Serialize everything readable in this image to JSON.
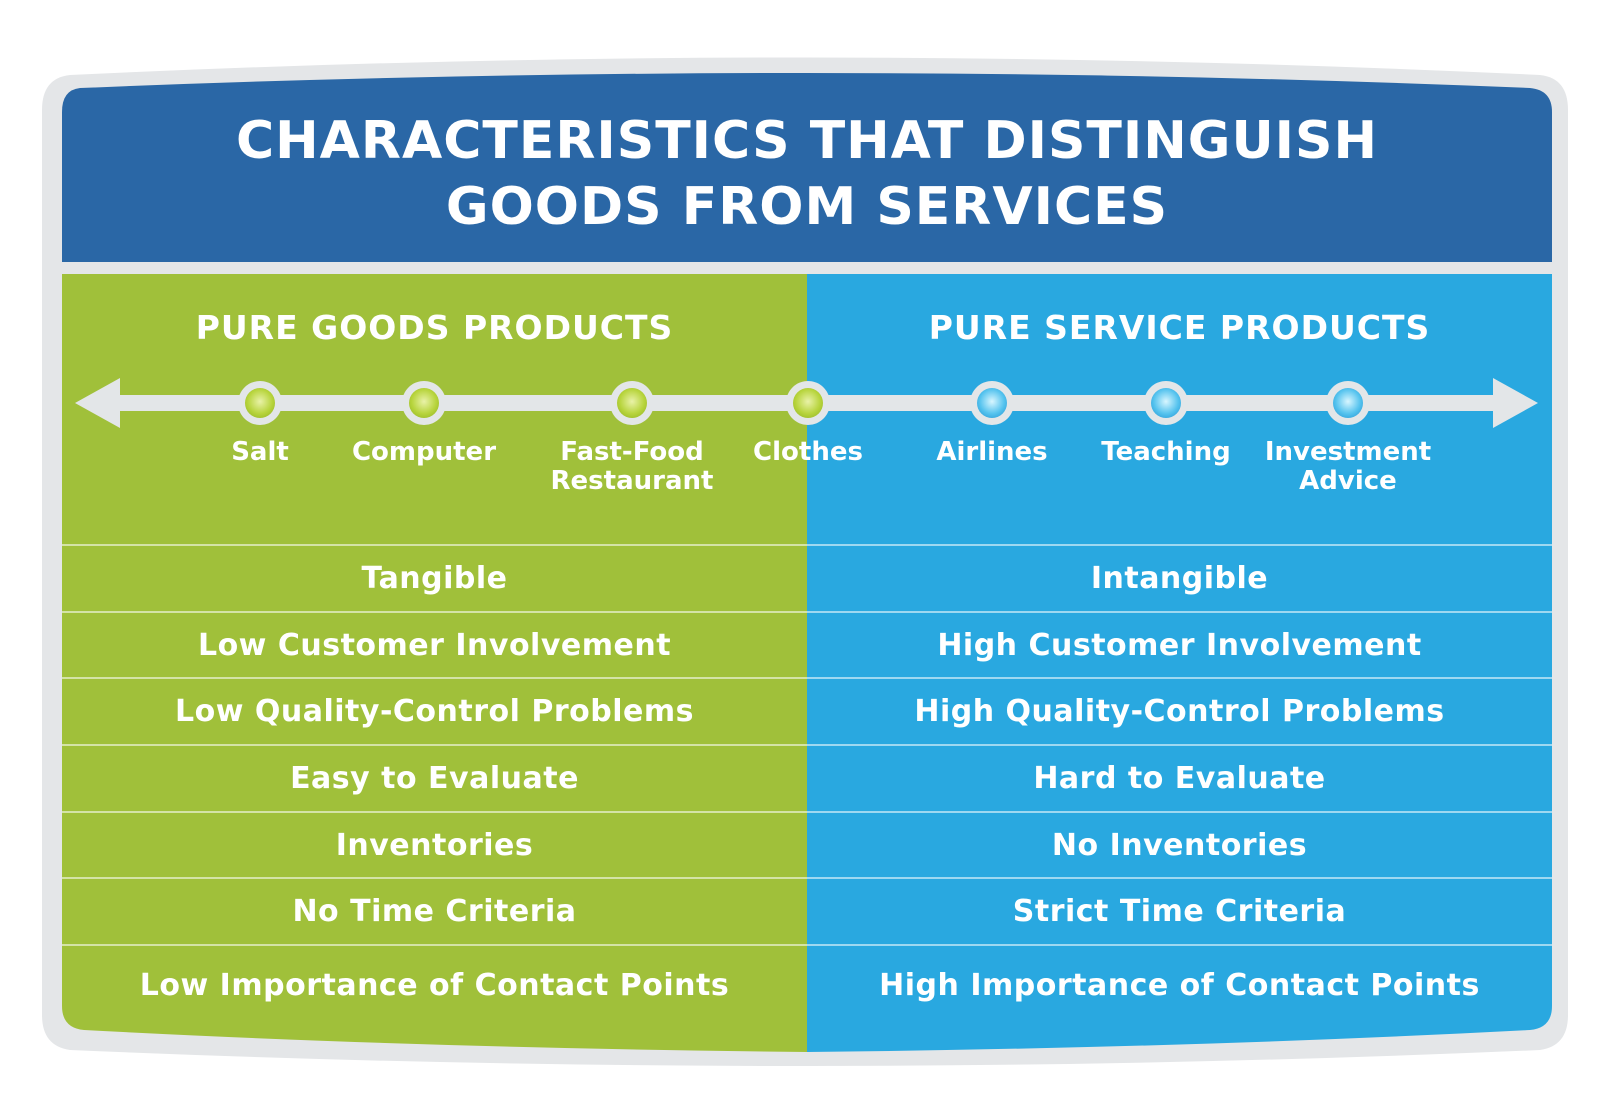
{
  "title_line1": "CHARACTERISTICS THAT DISTINGUISH",
  "title_line2": "GOODS FROM SERVICES",
  "colors": {
    "header_blue": "#2a67a6",
    "goods_green": "#a0c03a",
    "services_blue": "#29a8e0",
    "frame_gray": "#e4e6e8"
  },
  "columns": {
    "goods_heading": "PURE GOODS PRODUCTS",
    "services_heading": "PURE SERVICE PRODUCTS"
  },
  "continuum": [
    {
      "label": "Salt",
      "type": "goods"
    },
    {
      "label": "Computer",
      "type": "goods"
    },
    {
      "label": "Fast-Food Restaurant",
      "type": "goods"
    },
    {
      "label": "Clothes",
      "type": "goods"
    },
    {
      "label": "Airlines",
      "type": "services"
    },
    {
      "label": "Teaching",
      "type": "services"
    },
    {
      "label": "Investment Advice",
      "type": "services"
    }
  ],
  "rows": [
    {
      "goods": "Tangible",
      "services": "Intangible"
    },
    {
      "goods": "Low Customer Involvement",
      "services": "High Customer Involvement"
    },
    {
      "goods": "Low Quality-Control Problems",
      "services": "High Quality-Control Problems"
    },
    {
      "goods": "Easy to Evaluate",
      "services": "Hard to Evaluate"
    },
    {
      "goods": "Inventories",
      "services": "No Inventories"
    },
    {
      "goods": "No Time Criteria",
      "services": "Strict Time Criteria"
    },
    {
      "goods": "Low Importance of Contact Points",
      "services": "High Importance of Contact Points"
    }
  ]
}
